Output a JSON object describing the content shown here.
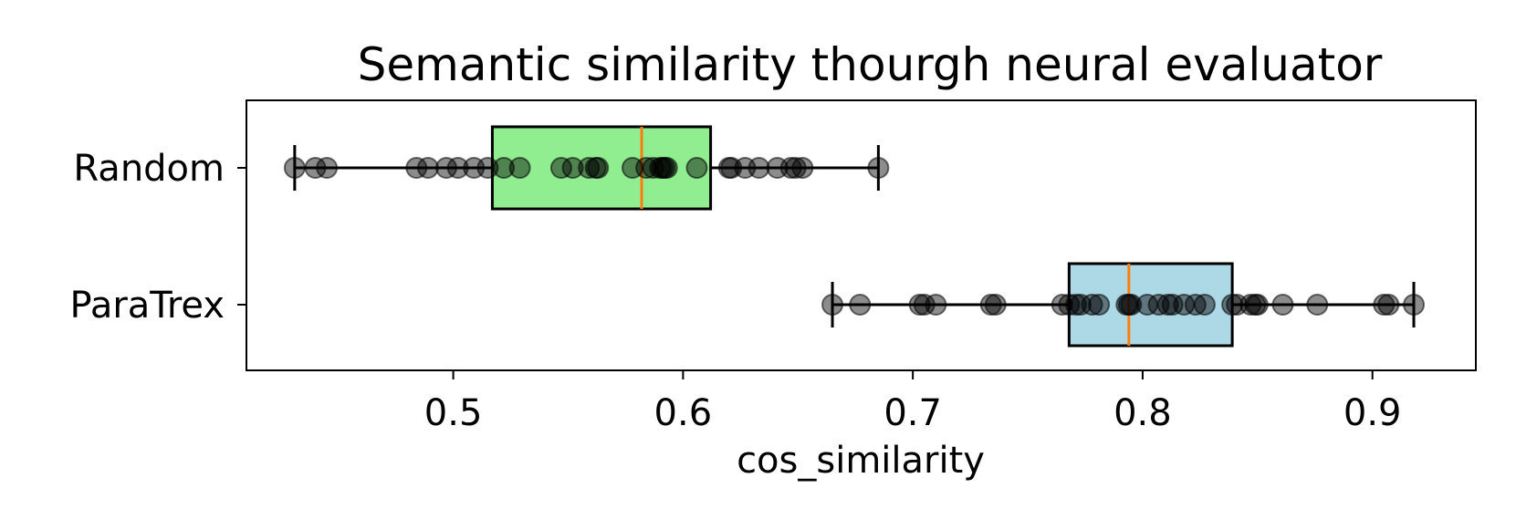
{
  "chart_data": {
    "type": "boxplot",
    "orientation": "horizontal",
    "title": "Semantic similarity thourgh neural evaluator",
    "xlabel": "cos_similarity",
    "ylabel": "",
    "xlim": [
      0.41,
      0.945
    ],
    "xticks": [
      0.5,
      0.6,
      0.7,
      0.8,
      0.9
    ],
    "xtick_labels": [
      "0.5",
      "0.6",
      "0.7",
      "0.8",
      "0.9"
    ],
    "grid": false,
    "categories": [
      "Random",
      "ParaTrex"
    ],
    "series": [
      {
        "name": "Random",
        "color": "#90ee90",
        "whisker_low": 0.431,
        "q1": 0.517,
        "median": 0.582,
        "q3": 0.612,
        "whisker_high": 0.685,
        "points": [
          0.431,
          0.44,
          0.445,
          0.484,
          0.489,
          0.497,
          0.502,
          0.509,
          0.515,
          0.522,
          0.529,
          0.547,
          0.552,
          0.559,
          0.562,
          0.563,
          0.578,
          0.584,
          0.587,
          0.59,
          0.591,
          0.592,
          0.593,
          0.606,
          0.62,
          0.621,
          0.627,
          0.633,
          0.641,
          0.647,
          0.649,
          0.652,
          0.685
        ]
      },
      {
        "name": "ParaTrex",
        "color": "#add8e6",
        "whisker_low": 0.665,
        "q1": 0.768,
        "median": 0.794,
        "q3": 0.839,
        "whisker_high": 0.918,
        "points": [
          0.665,
          0.677,
          0.703,
          0.705,
          0.71,
          0.734,
          0.736,
          0.765,
          0.768,
          0.771,
          0.773,
          0.778,
          0.781,
          0.793,
          0.794,
          0.795,
          0.802,
          0.807,
          0.811,
          0.813,
          0.818,
          0.823,
          0.827,
          0.839,
          0.841,
          0.847,
          0.849,
          0.85,
          0.861,
          0.876,
          0.905,
          0.907,
          0.918
        ]
      }
    ],
    "median_color": "#ff7f0e",
    "point_color": "#000000"
  }
}
